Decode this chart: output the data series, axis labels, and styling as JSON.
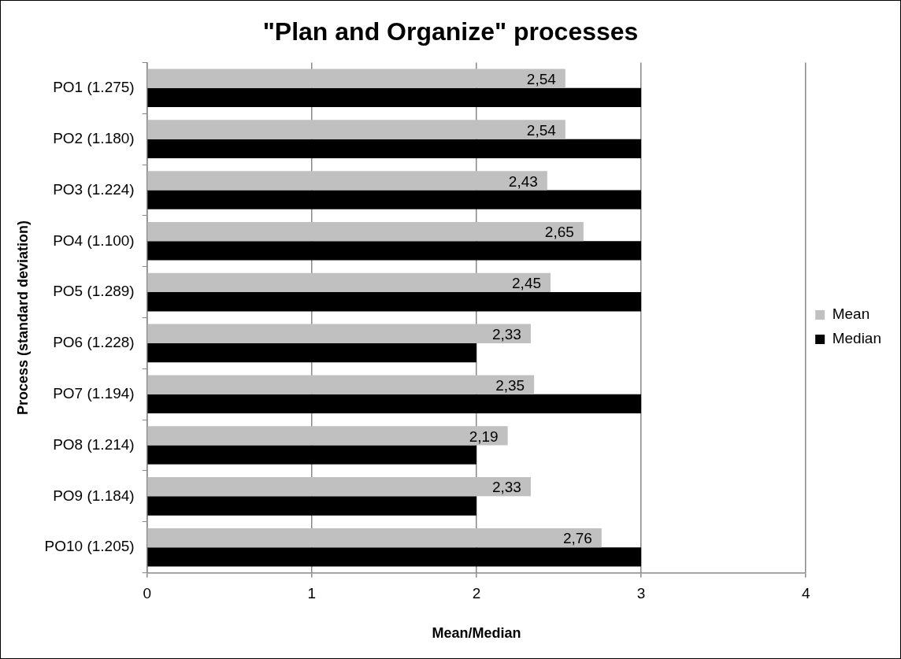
{
  "chart_data": {
    "type": "bar",
    "orientation": "horizontal",
    "title": "\"Plan and Organize\" processes",
    "xlabel": "Mean/Median",
    "ylabel": "Process (standard deviation)",
    "categories": [
      "PO1 (1.275)",
      "PO2 (1.180)",
      "PO3 (1.224)",
      "PO4 (1.100)",
      "PO5 (1.289)",
      "PO6 (1.228)",
      "PO7 (1.194)",
      "PO8 (1.214)",
      "PO9 (1.184)",
      "PO10 (1.205)"
    ],
    "series": [
      {
        "name": "Mean",
        "color": "#c0c0c0",
        "values": [
          2.54,
          2.54,
          2.43,
          2.65,
          2.45,
          2.33,
          2.35,
          2.19,
          2.33,
          2.76
        ],
        "value_labels": [
          "2,54",
          "2,54",
          "2,43",
          "2,65",
          "2,45",
          "2,33",
          "2,35",
          "2,19",
          "2,33",
          "2,76"
        ]
      },
      {
        "name": "Median",
        "color": "#000000",
        "values": [
          3,
          3,
          3,
          3,
          3,
          2,
          3,
          2,
          2,
          3
        ]
      }
    ],
    "xlim": [
      0,
      4
    ],
    "xticks": [
      0,
      1,
      2,
      3,
      4
    ],
    "grid": "x",
    "legend": "right"
  }
}
